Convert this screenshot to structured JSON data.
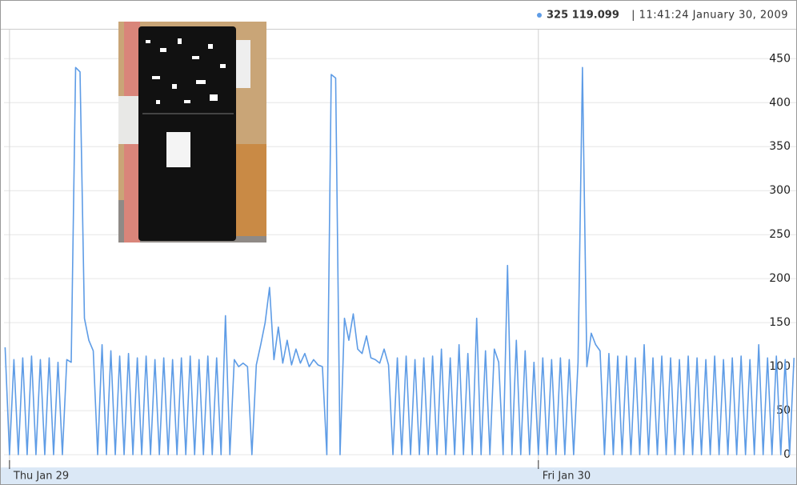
{
  "chart_data": {
    "type": "line",
    "readout": {
      "value": "325 119.099",
      "time": "| 11:41:24 January 30, 2009"
    },
    "color": "#5e9ce6",
    "x": [
      -0.2,
      0,
      0.2,
      0.4,
      0.6,
      0.8,
      1,
      1.2,
      1.4,
      1.6,
      1.8,
      2,
      2.2,
      2.4,
      2.6,
      2.8,
      3,
      3.2,
      3.4,
      3.6,
      3.8,
      4,
      4.2,
      4.4,
      4.6,
      4.8,
      5,
      5.2,
      5.4,
      5.6,
      5.8,
      6,
      6.2,
      6.4,
      6.6,
      6.8,
      7,
      7.2,
      7.4,
      7.6,
      7.8,
      8,
      8.2,
      8.4,
      8.6,
      8.8,
      9,
      9.2,
      9.4,
      9.6,
      9.8,
      10,
      10.2,
      10.4,
      10.6,
      10.8,
      11,
      11.2,
      11.4,
      11.6,
      11.8,
      12,
      12.2,
      12.4,
      12.6,
      12.8,
      13,
      13.2,
      13.4,
      13.6,
      13.8,
      14,
      14.2,
      14.4,
      14.6,
      14.8,
      15,
      15.2,
      15.4,
      15.6,
      15.8,
      16,
      16.2,
      16.4,
      16.6,
      16.8,
      17,
      17.2,
      17.4,
      17.6,
      17.8,
      18,
      18.2,
      18.4,
      18.6,
      18.8,
      19,
      19.2,
      19.4,
      19.6,
      19.8,
      20,
      20.2,
      20.4,
      20.6,
      20.8,
      21,
      21.2,
      21.4,
      21.6,
      21.8,
      22,
      22.2,
      22.4,
      22.6,
      22.8,
      23,
      23.2,
      23.4,
      23.6,
      23.8,
      24,
      24.2,
      24.4,
      24.6,
      24.8,
      25,
      25.2,
      25.4,
      25.6,
      25.8,
      26,
      26.2,
      26.4,
      26.6,
      26.8,
      27,
      27.2,
      27.4,
      27.6,
      27.8,
      28,
      28.2,
      28.4,
      28.6,
      28.8,
      29,
      29.2,
      29.4,
      29.6,
      29.8,
      30,
      30.2,
      30.4,
      30.6,
      30.8,
      31,
      31.2,
      31.4,
      31.6,
      31.8,
      32,
      32.2,
      32.4,
      32.6,
      32.8,
      33,
      33.2,
      33.4,
      33.6,
      33.8,
      34,
      34.2,
      34.4,
      34.6,
      34.8,
      35,
      35.2,
      35.4,
      35.6
    ],
    "values": [
      122,
      0,
      108,
      0,
      110,
      0,
      112,
      0,
      108,
      0,
      110,
      0,
      105,
      0,
      108,
      105,
      440,
      435,
      155,
      130,
      118,
      0,
      125,
      0,
      118,
      0,
      112,
      0,
      115,
      0,
      110,
      0,
      112,
      0,
      108,
      0,
      110,
      0,
      108,
      0,
      110,
      0,
      112,
      0,
      108,
      0,
      112,
      0,
      110,
      0,
      158,
      0,
      108,
      100,
      104,
      100,
      0,
      102,
      125,
      150,
      190,
      108,
      145,
      104,
      130,
      102,
      120,
      104,
      115,
      100,
      108,
      102,
      100,
      0,
      432,
      428,
      0,
      155,
      130,
      160,
      120,
      115,
      135,
      110,
      108,
      104,
      120,
      102,
      0,
      110,
      0,
      112,
      0,
      108,
      0,
      110,
      0,
      112,
      0,
      120,
      0,
      110,
      0,
      125,
      0,
      115,
      0,
      155,
      0,
      118,
      0,
      120,
      105,
      0,
      215,
      0,
      130,
      0,
      118,
      0,
      105,
      0,
      110,
      0,
      108,
      0,
      110,
      0,
      108,
      0,
      105,
      440,
      100,
      138,
      125,
      118,
      0,
      115,
      0,
      112,
      0,
      112,
      0,
      110,
      0,
      125,
      0,
      110,
      0,
      112,
      0,
      110,
      0,
      108,
      0,
      112,
      0,
      110,
      0,
      108,
      0,
      112,
      0,
      108,
      0,
      110,
      0,
      112,
      0,
      108,
      0,
      125,
      0,
      110,
      0,
      112,
      0,
      108,
      0,
      110
    ],
    "xlim": [
      -0.25,
      35.7
    ],
    "xticks": [
      {
        "value": 0,
        "label": "Thu Jan 29"
      },
      {
        "value": 24,
        "label": "Fri Jan 30"
      }
    ],
    "ylim": [
      -9,
      483
    ],
    "yticks": [
      0,
      50,
      100,
      150,
      200,
      250,
      300,
      350,
      400,
      450
    ],
    "grid": true
  }
}
